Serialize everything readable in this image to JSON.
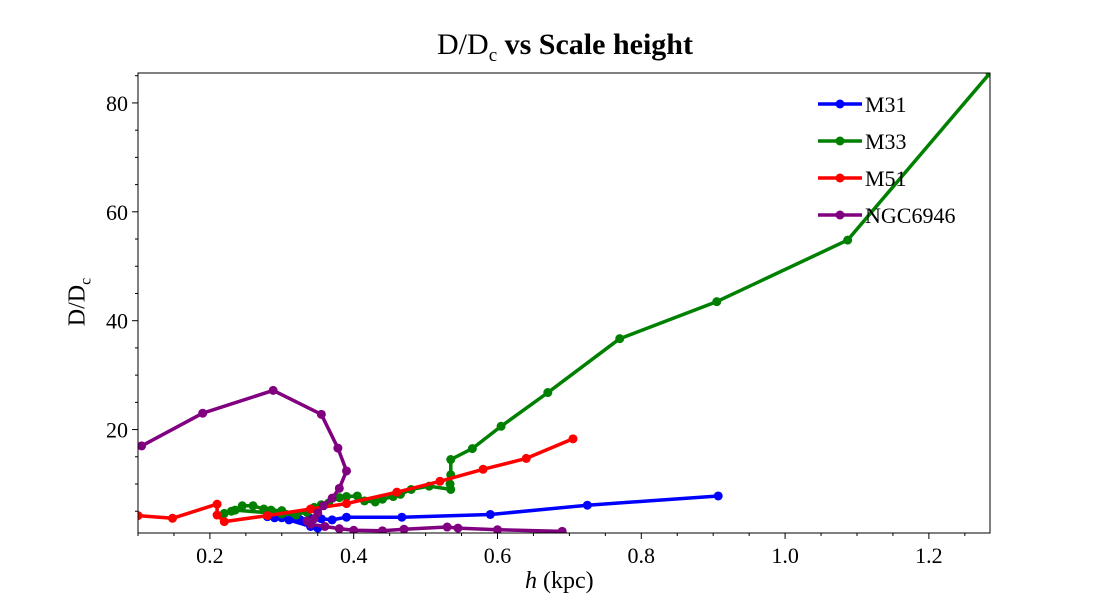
{
  "chart_data": {
    "type": "line",
    "title": "D/Dc vs Scale height",
    "title_parts": {
      "pre": "D/D",
      "sub": "c",
      "post": "vs Scale height"
    },
    "xlabel": "h (kpc)",
    "xlabel_parts": {
      "var": "h",
      "unit": "(kpc)"
    },
    "ylabel": "D/Dc",
    "ylabel_parts": {
      "main": "D/D",
      "sub": "c"
    },
    "xlim": [
      0.1,
      1.285
    ],
    "ylim": [
      1.0,
      85.5
    ],
    "xticks": [
      0.2,
      0.4,
      0.6,
      0.8,
      1.0,
      1.2
    ],
    "xtick_labels": [
      "0.2",
      "0.4",
      "0.6",
      "0.8",
      "1.0",
      "1.2"
    ],
    "yticks": [
      20,
      40,
      60,
      80
    ],
    "ytick_labels": [
      "20",
      "40",
      "60",
      "80"
    ],
    "grid": false,
    "legend_position": "top-right",
    "series": [
      {
        "name": "M31",
        "color": "#0000ff",
        "points": [
          [
            0.907,
            7.8
          ],
          [
            0.725,
            6.1
          ],
          [
            0.59,
            4.4
          ],
          [
            0.467,
            3.9
          ],
          [
            0.39,
            3.9
          ],
          [
            0.37,
            3.4
          ],
          [
            0.355,
            3.6
          ],
          [
            0.34,
            3.7
          ],
          [
            0.325,
            3.5
          ],
          [
            0.31,
            3.4
          ],
          [
            0.29,
            3.8
          ],
          [
            0.28,
            4.0
          ],
          [
            0.3,
            3.8
          ],
          [
            0.34,
            2.2
          ],
          [
            0.35,
            1.9
          ]
        ]
      },
      {
        "name": "M33",
        "color": "#008000",
        "points": [
          [
            1.285,
            85.5
          ],
          [
            1.087,
            54.8
          ],
          [
            0.905,
            43.5
          ],
          [
            0.77,
            36.7
          ],
          [
            0.67,
            26.8
          ],
          [
            0.605,
            20.6
          ],
          [
            0.565,
            16.5
          ],
          [
            0.535,
            14.5
          ],
          [
            0.535,
            11.7
          ],
          [
            0.534,
            10.0
          ],
          [
            0.535,
            9.0
          ],
          [
            0.505,
            9.6
          ],
          [
            0.48,
            9.0
          ],
          [
            0.465,
            8.1
          ],
          [
            0.455,
            7.7
          ],
          [
            0.44,
            7.2
          ],
          [
            0.43,
            6.7
          ],
          [
            0.415,
            6.9
          ],
          [
            0.405,
            7.8
          ],
          [
            0.39,
            7.7
          ],
          [
            0.38,
            7.5
          ],
          [
            0.365,
            6.5
          ],
          [
            0.355,
            6.2
          ],
          [
            0.345,
            5.7
          ],
          [
            0.335,
            4.8
          ],
          [
            0.32,
            4.5
          ],
          [
            0.3,
            5.1
          ],
          [
            0.285,
            5.2
          ],
          [
            0.275,
            5.4
          ],
          [
            0.26,
            6.0
          ],
          [
            0.245,
            6.0
          ],
          [
            0.23,
            5.0
          ],
          [
            0.22,
            4.6
          ],
          [
            0.235,
            5.2
          ],
          [
            0.3,
            4.5
          ],
          [
            0.32,
            4.3
          ]
        ]
      },
      {
        "name": "M51",
        "color": "#ff0000",
        "points": [
          [
            0.705,
            18.3
          ],
          [
            0.64,
            14.7
          ],
          [
            0.58,
            12.7
          ],
          [
            0.52,
            10.5
          ],
          [
            0.46,
            8.5
          ],
          [
            0.39,
            6.4
          ],
          [
            0.34,
            5.4
          ],
          [
            0.28,
            4.2
          ],
          [
            0.22,
            3.1
          ],
          [
            0.21,
            4.3
          ],
          [
            0.21,
            6.3
          ],
          [
            0.148,
            3.7
          ],
          [
            0.1,
            4.2
          ]
        ]
      },
      {
        "name": "NGC6946",
        "color": "#800080",
        "points": [
          [
            0.105,
            17.0
          ],
          [
            0.19,
            23.0
          ],
          [
            0.288,
            27.2
          ],
          [
            0.355,
            22.8
          ],
          [
            0.378,
            16.6
          ],
          [
            0.39,
            12.4
          ],
          [
            0.38,
            9.2
          ],
          [
            0.37,
            7.4
          ],
          [
            0.358,
            6.0
          ],
          [
            0.35,
            4.7
          ],
          [
            0.345,
            3.6
          ],
          [
            0.335,
            3.2
          ],
          [
            0.34,
            2.6
          ],
          [
            0.36,
            2.2
          ],
          [
            0.38,
            1.8
          ],
          [
            0.4,
            1.5
          ],
          [
            0.44,
            1.4
          ],
          [
            0.47,
            1.7
          ],
          [
            0.53,
            2.1
          ],
          [
            0.545,
            1.9
          ],
          [
            0.6,
            1.6
          ],
          [
            0.69,
            1.3
          ]
        ]
      }
    ]
  }
}
